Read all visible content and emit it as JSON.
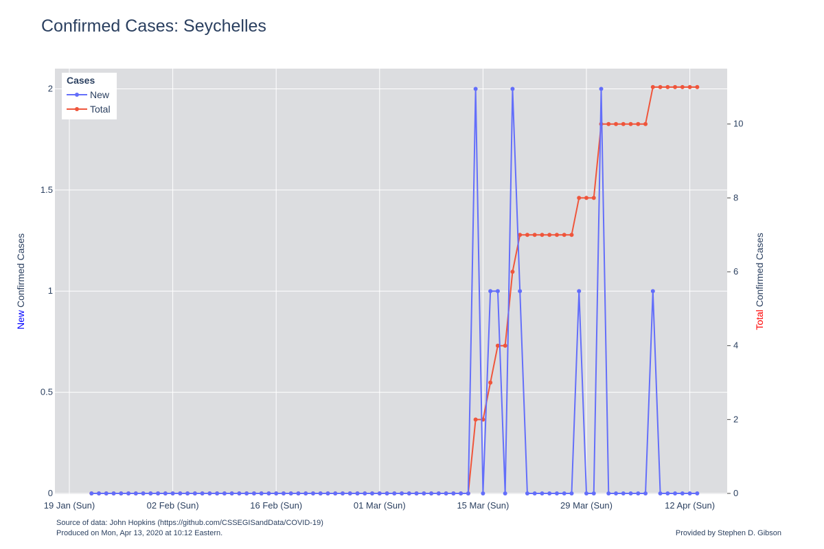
{
  "title": "Confirmed Cases: Seychelles",
  "footer": {
    "source": "Source of data: John Hopkins (https://github.com/CSSEGISandData/COVID-19)",
    "produced": "Produced on Mon, Apr 13, 2020 at 10:12 Eastern.",
    "credit": "Provided by Stephen D. Gibson"
  },
  "colors": {
    "new": "#636efa",
    "total": "#ef553b",
    "plot_bg": "#dcdde0",
    "grid": "#ffffff",
    "text": "#2a3f5f",
    "new_label": "#0000ff",
    "total_label": "#ff0000"
  },
  "chart_data": {
    "type": "line",
    "title": "Confirmed Cases: Seychelles",
    "x_start": "2020-01-22",
    "x_end": "2020-04-12",
    "x_ticks": [
      "19 Jan (Sun)",
      "02 Feb (Sun)",
      "16 Feb (Sun)",
      "01 Mar (Sun)",
      "15 Mar (Sun)",
      "29 Mar (Sun)",
      "12 Apr (Sun)"
    ],
    "ylabel_left": {
      "highlight": "New",
      "rest": " Confirmed Cases"
    },
    "ylabel_right": {
      "highlight": "Total",
      "rest": " Confirmed Cases"
    },
    "ylim_left": [
      0,
      2.1
    ],
    "ylim_right": [
      0,
      11.5
    ],
    "yticks_left": [
      "0",
      "0.5",
      "1",
      "1.5",
      "2"
    ],
    "yticks_right": [
      "0",
      "2",
      "4",
      "6",
      "8",
      "10"
    ],
    "legend": {
      "title": "Cases",
      "position": "top-left",
      "items": [
        "New",
        "Total"
      ]
    },
    "series": [
      {
        "name": "New",
        "axis": "left",
        "values": [
          0,
          0,
          0,
          0,
          0,
          0,
          0,
          0,
          0,
          0,
          0,
          0,
          0,
          0,
          0,
          0,
          0,
          0,
          0,
          0,
          0,
          0,
          0,
          0,
          0,
          0,
          0,
          0,
          0,
          0,
          0,
          0,
          0,
          0,
          0,
          0,
          0,
          0,
          0,
          0,
          0,
          0,
          0,
          0,
          0,
          0,
          0,
          0,
          0,
          0,
          0,
          0,
          2,
          0,
          1,
          1,
          0,
          2,
          1,
          0,
          0,
          0,
          0,
          0,
          0,
          0,
          1,
          0,
          0,
          2,
          0,
          0,
          0,
          0,
          0,
          0,
          1,
          0,
          0,
          0,
          0,
          0,
          0
        ]
      },
      {
        "name": "Total",
        "axis": "right",
        "values": [
          0,
          0,
          0,
          0,
          0,
          0,
          0,
          0,
          0,
          0,
          0,
          0,
          0,
          0,
          0,
          0,
          0,
          0,
          0,
          0,
          0,
          0,
          0,
          0,
          0,
          0,
          0,
          0,
          0,
          0,
          0,
          0,
          0,
          0,
          0,
          0,
          0,
          0,
          0,
          0,
          0,
          0,
          0,
          0,
          0,
          0,
          0,
          0,
          0,
          0,
          0,
          0,
          2,
          2,
          3,
          4,
          4,
          6,
          7,
          7,
          7,
          7,
          7,
          7,
          7,
          7,
          8,
          8,
          8,
          10,
          10,
          10,
          10,
          10,
          10,
          10,
          11,
          11,
          11,
          11,
          11,
          11,
          11
        ]
      }
    ]
  }
}
